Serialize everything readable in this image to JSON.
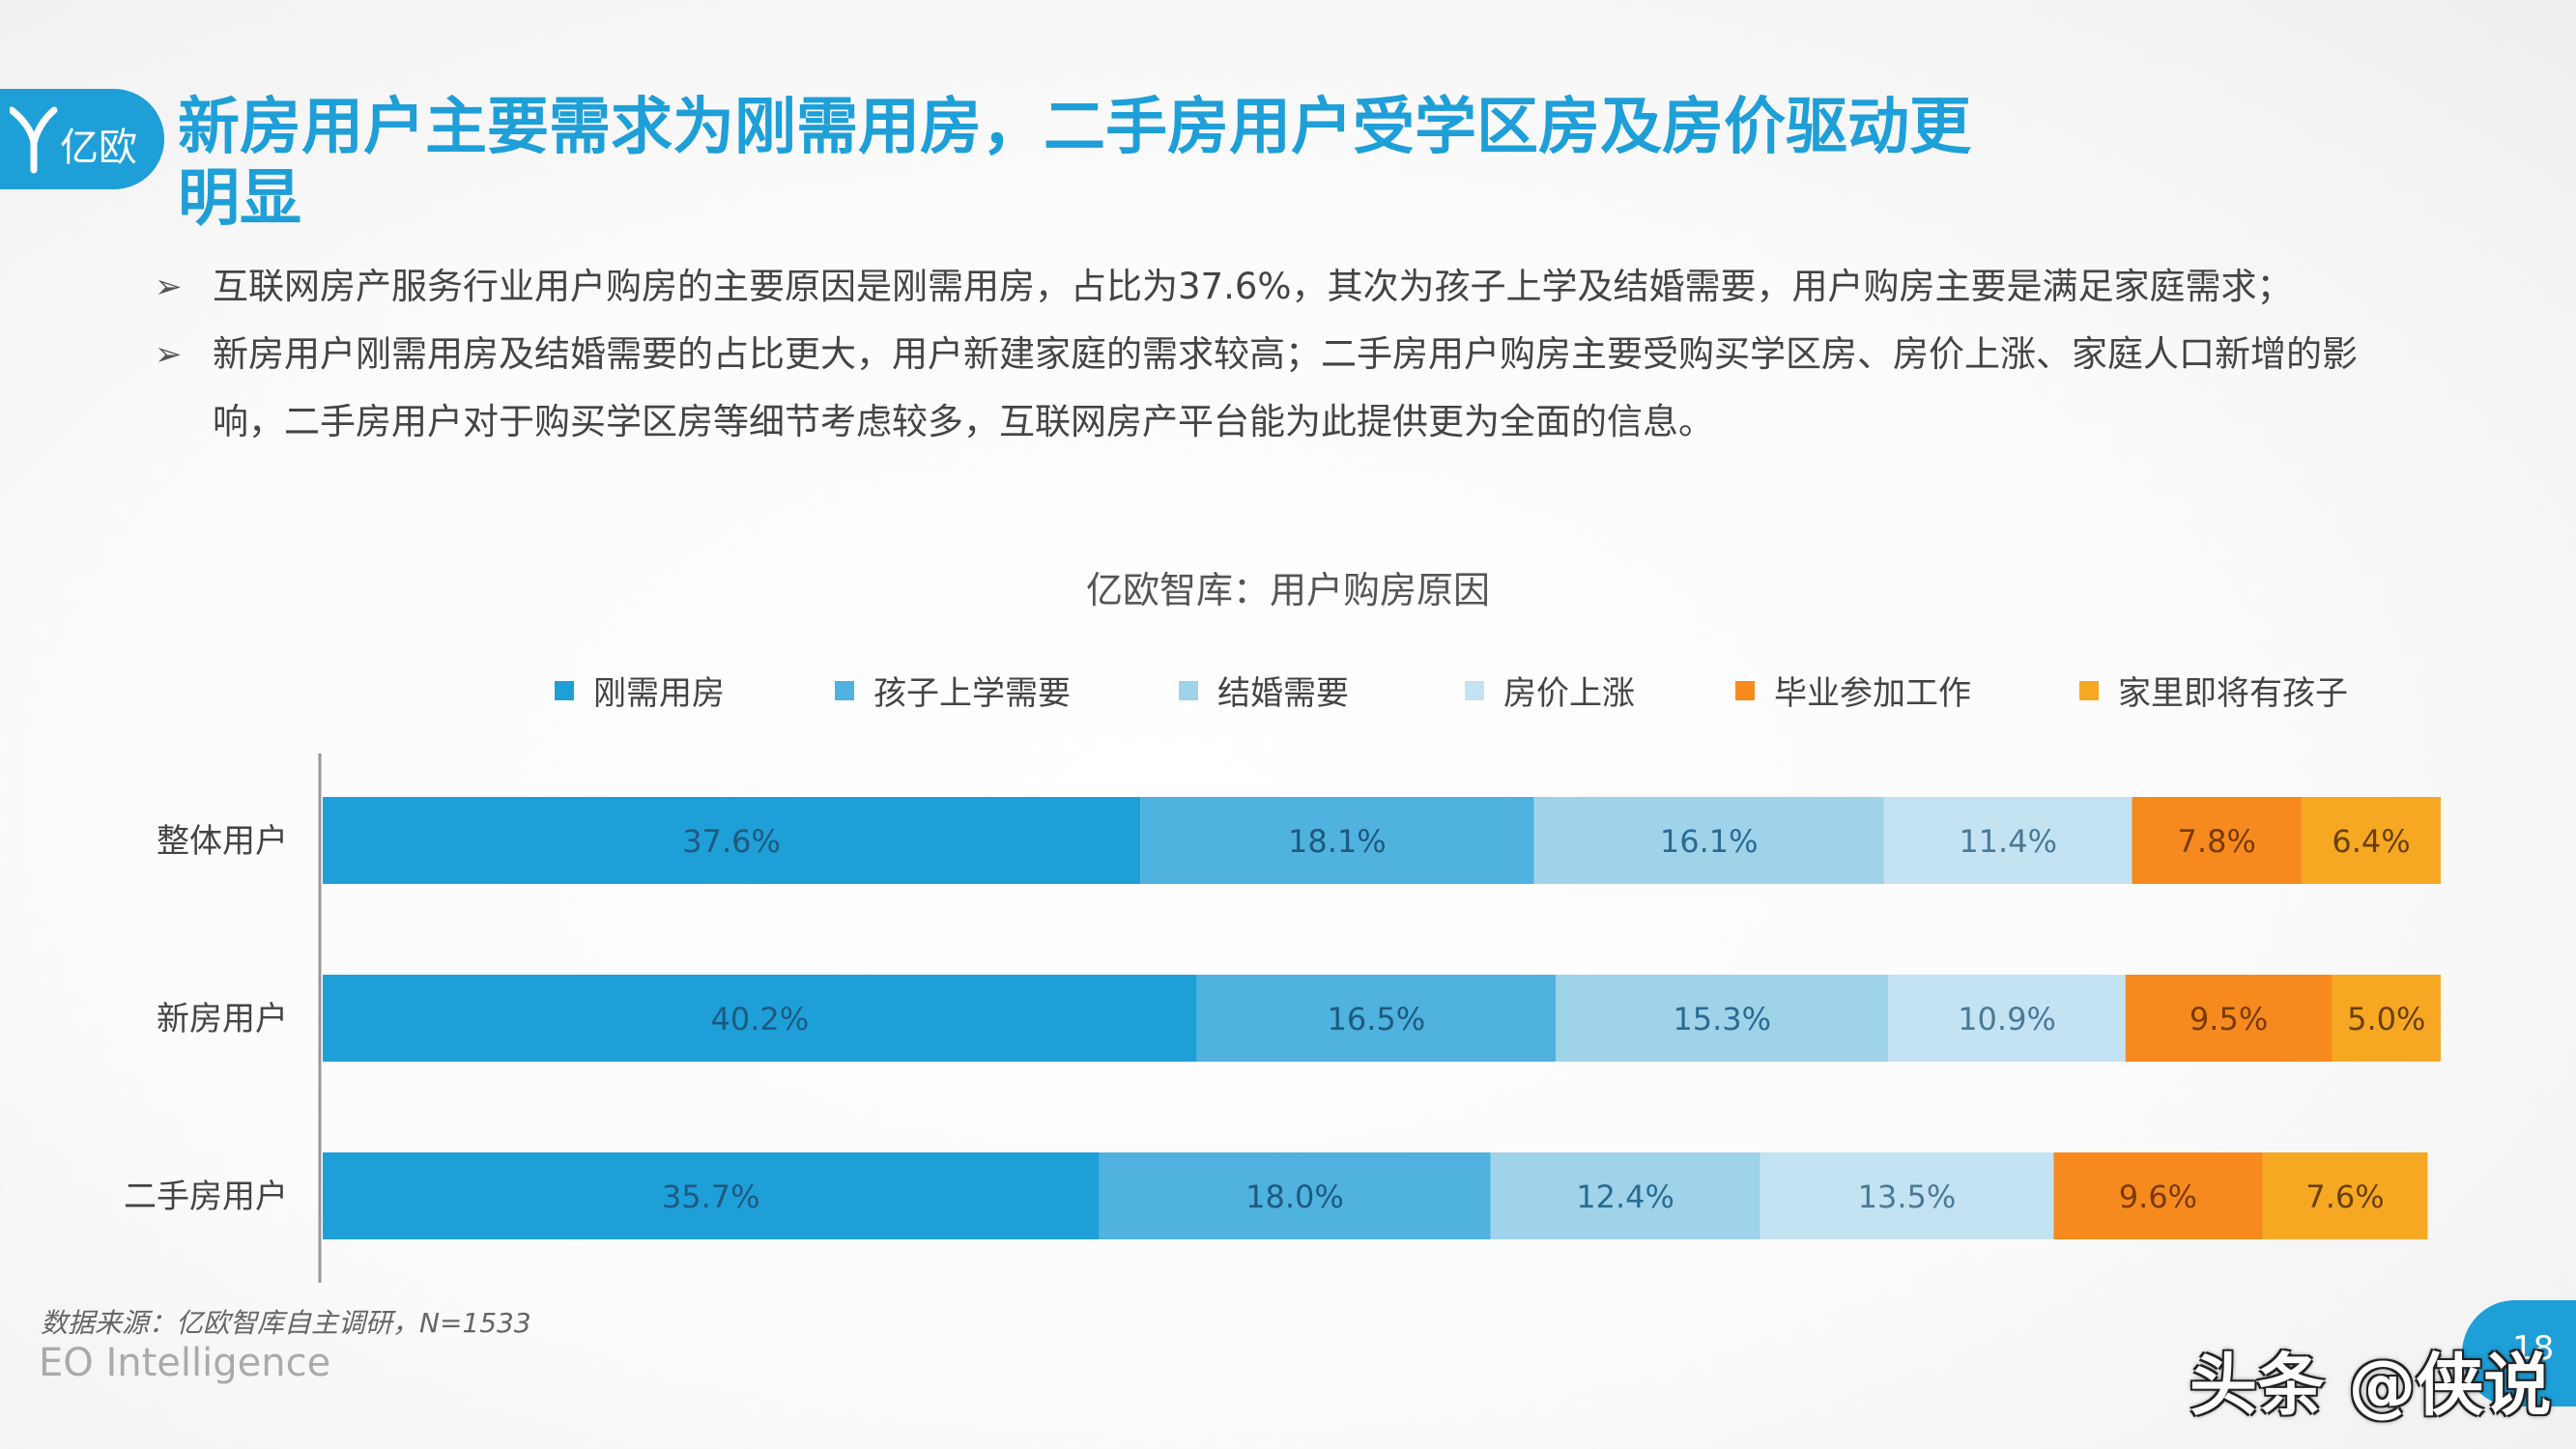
{
  "logo": {
    "brand": "亿欧"
  },
  "title": "新房用户主要需求为刚需用房，二手房用户受学区房及房价驱动更明显",
  "bullets": [
    "互联网房产服务行业用户购房的主要原因是刚需用房，占比为37.6%，其次为孩子上学及结婚需要，用户购房主要是满足家庭需求；",
    "新房用户刚需用房及结婚需要的占比更大，用户新建家庭的需求较高；二手房用户购房主要受购买学区房、房价上涨、家庭人口新增的影响，二手房用户对于购买学区房等细节考虑较多，互联网房产平台能为此提供更为全面的信息。"
  ],
  "chart_data": {
    "type": "bar",
    "orientation": "horizontal",
    "stacked": true,
    "title": "亿欧智库：用户购房原因",
    "categories": [
      "整体用户",
      "新房用户",
      "二手房用户"
    ],
    "series": [
      {
        "name": "刚需用房",
        "values": [
          37.6,
          40.2,
          35.7
        ],
        "labels": [
          "37.6%",
          "40.2%",
          "35.7%"
        ],
        "color": "#1e9fd8"
      },
      {
        "name": "孩子上学需要",
        "values": [
          18.1,
          16.5,
          18.0
        ],
        "labels": [
          "18.1%",
          "16.5%",
          "18.0%"
        ],
        "color": "#4fb2df"
      },
      {
        "name": "结婚需要",
        "values": [
          16.1,
          15.3,
          12.4
        ],
        "labels": [
          "16.1%",
          "15.3%",
          "12.4%"
        ],
        "color": "#9fd3ea"
      },
      {
        "name": "房价上涨",
        "values": [
          11.4,
          10.9,
          13.5
        ],
        "labels": [
          "11.4%",
          "10.9%",
          "13.5%"
        ],
        "color": "#c3e3f3"
      },
      {
        "name": "毕业参加工作",
        "values": [
          7.8,
          9.5,
          9.6
        ],
        "labels": [
          "7.8%",
          "9.5%",
          "9.6%"
        ],
        "color": "#f68a1f"
      },
      {
        "name": "家里即将有孩子",
        "values": [
          6.4,
          5.0,
          7.6
        ],
        "labels": [
          "6.4%",
          "5.0%",
          "7.6%"
        ],
        "color": "#f7a823"
      }
    ],
    "xlim": [
      0,
      97.4
    ],
    "legend_position": "top",
    "grid": false
  },
  "footer": {
    "source": "数据来源：亿欧智库自主调研，N=1533",
    "brand": "EO Intelligence",
    "page": "18"
  },
  "watermark": "头条 @侠说",
  "colors": {
    "accent": "#1e9fd8"
  }
}
